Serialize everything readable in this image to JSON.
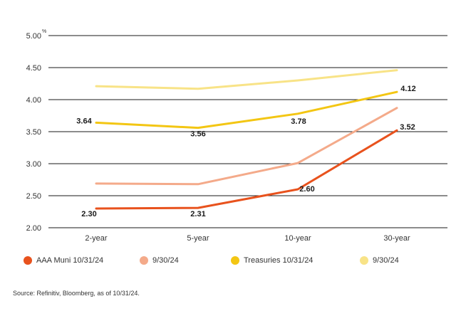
{
  "chart_data": {
    "type": "line",
    "categories": [
      "2-year",
      "5-year",
      "10-year",
      "30-year"
    ],
    "y_ticks": [
      "5.00",
      "4.50",
      "4.00",
      "3.50",
      "3.00",
      "2.50",
      "2.00"
    ],
    "y_unit": "%",
    "ylim": [
      2.0,
      5.0
    ],
    "grid": true,
    "legend_position": "bottom",
    "series": [
      {
        "name": "AAA Muni 10/31/24",
        "color": "#e8521d",
        "values": [
          2.3,
          2.31,
          2.6,
          3.52
        ],
        "labels": [
          "2.30",
          "2.31",
          "2.60",
          "3.52"
        ]
      },
      {
        "name": "9/30/24",
        "color": "#f4aa8a",
        "values": [
          2.69,
          2.68,
          3.01,
          3.87
        ],
        "labels": []
      },
      {
        "name": "Treasuries 10/31/24",
        "color": "#f3c613",
        "values": [
          3.64,
          3.56,
          3.78,
          4.12
        ],
        "labels": [
          "3.64",
          "3.56",
          "3.78",
          "4.12"
        ]
      },
      {
        "name": "9/30/24",
        "color": "#f8e387",
        "values": [
          4.21,
          4.17,
          4.3,
          4.46
        ],
        "labels": []
      }
    ]
  },
  "source": "Source: Refinitiv, Bloomberg, as of 10/31/24."
}
